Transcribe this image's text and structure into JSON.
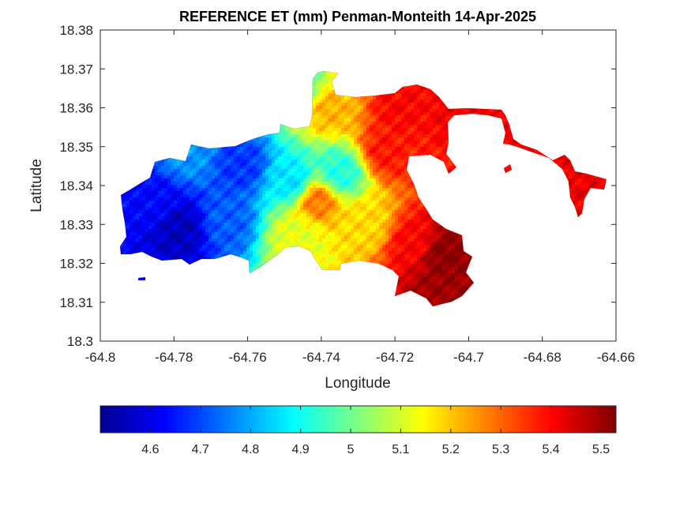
{
  "chart_data": {
    "type": "heatmap",
    "title": "REFERENCE ET (mm) Penman-Monteith 14-Apr-2025",
    "xlabel": "Longitude",
    "ylabel": "Latitude",
    "xlim": [
      -64.8,
      -64.66
    ],
    "ylim": [
      18.3,
      18.38
    ],
    "x_ticks": [
      "-64.8",
      "-64.78",
      "-64.76",
      "-64.74",
      "-64.72",
      "-64.7",
      "-64.68",
      "-64.66"
    ],
    "y_ticks": [
      "18.3",
      "18.31",
      "18.32",
      "18.33",
      "18.34",
      "18.35",
      "18.36",
      "18.37",
      "18.38"
    ],
    "grid": false,
    "colorbar": {
      "orientation": "horizontal",
      "placement": "below",
      "colormap": "jet",
      "range": [
        4.5,
        5.53
      ],
      "ticks": [
        "4.6",
        "4.7",
        "4.8",
        "4.9",
        "5",
        "5.1",
        "5.2",
        "5.3",
        "5.4",
        "5.5"
      ]
    },
    "field": {
      "min": 4.55,
      "max": 5.53,
      "hotspots": [
        {
          "lon": -64.778,
          "lat": 18.329,
          "value": 4.56
        },
        {
          "lon": -64.785,
          "lat": 18.336,
          "value": 4.63
        },
        {
          "lon": -64.762,
          "lat": 18.345,
          "value": 4.68
        },
        {
          "lon": -64.766,
          "lat": 18.331,
          "value": 4.72
        },
        {
          "lon": -64.776,
          "lat": 18.348,
          "value": 4.78
        },
        {
          "lon": -64.748,
          "lat": 18.341,
          "value": 4.86
        },
        {
          "lon": -64.735,
          "lat": 18.343,
          "value": 4.92
        },
        {
          "lon": -64.745,
          "lat": 18.365,
          "value": 5.0
        },
        {
          "lon": -64.746,
          "lat": 18.327,
          "value": 5.12
        },
        {
          "lon": -64.741,
          "lat": 18.336,
          "value": 5.28
        },
        {
          "lon": -64.738,
          "lat": 18.36,
          "value": 5.22
        },
        {
          "lon": -64.728,
          "lat": 18.33,
          "value": 5.18
        },
        {
          "lon": -64.722,
          "lat": 18.349,
          "value": 5.38
        },
        {
          "lon": -64.718,
          "lat": 18.36,
          "value": 5.4
        },
        {
          "lon": -64.715,
          "lat": 18.325,
          "value": 5.4
        },
        {
          "lon": -64.707,
          "lat": 18.322,
          "value": 5.52
        },
        {
          "lon": -64.708,
          "lat": 18.312,
          "value": 5.5
        },
        {
          "lon": -64.7,
          "lat": 18.358,
          "value": 5.42
        },
        {
          "lon": -64.672,
          "lat": 18.339,
          "value": 5.42
        }
      ]
    }
  }
}
